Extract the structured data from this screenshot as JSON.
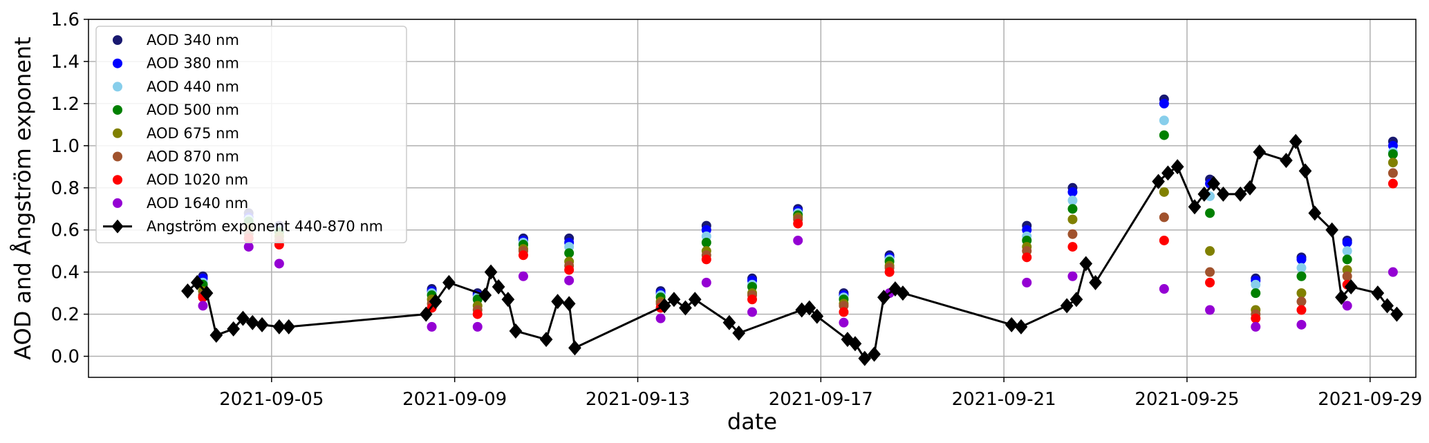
{
  "chart_data": {
    "type": "scatter",
    "title": "",
    "xlabel": "date",
    "ylabel": "AOD and Ångström exponent",
    "xlim": [
      "2021-09-01",
      "2021-09-30"
    ],
    "ylim": [
      -0.1,
      1.6
    ],
    "x_ticks": [
      "2021-09-05",
      "2021-09-09",
      "2021-09-13",
      "2021-09-17",
      "2021-09-21",
      "2021-09-25",
      "2021-09-29"
    ],
    "y_ticks": [
      "0.0",
      "0.2",
      "0.4",
      "0.6",
      "0.8",
      "1.0",
      "1.2",
      "1.4",
      "1.6"
    ],
    "grid": true,
    "legend_position": "top-left",
    "x": [
      "2021-09-03 12:00",
      "2021-09-04 12:00",
      "2021-09-05 04:00",
      "2021-09-08 12:00",
      "2021-09-09 12:00",
      "2021-09-10 12:00",
      "2021-09-11 12:00",
      "2021-09-13 12:00",
      "2021-09-14 12:00",
      "2021-09-15 12:00",
      "2021-09-16 12:00",
      "2021-09-17 12:00",
      "2021-09-18 12:00",
      "2021-09-21 12:00",
      "2021-09-22 12:00",
      "2021-09-24 12:00",
      "2021-09-25 12:00",
      "2021-09-26 12:00",
      "2021-09-27 12:00",
      "2021-09-28 12:00",
      "2021-09-29 12:00"
    ],
    "series": [
      {
        "name": "AOD 340 nm",
        "color": "#191970",
        "marker": "circle",
        "values": [
          0.38,
          0.68,
          0.62,
          0.32,
          0.3,
          0.56,
          0.56,
          0.31,
          0.62,
          0.37,
          0.7,
          0.3,
          0.48,
          0.62,
          0.8,
          1.22,
          0.84,
          0.37,
          0.47,
          0.55,
          1.02
        ]
      },
      {
        "name": "AOD 380 nm",
        "color": "#0000ff",
        "marker": "circle",
        "values": [
          0.37,
          0.66,
          0.61,
          0.31,
          0.29,
          0.55,
          0.54,
          0.3,
          0.6,
          0.36,
          0.69,
          0.29,
          0.47,
          0.6,
          0.78,
          1.2,
          0.82,
          0.36,
          0.46,
          0.54,
          1.0
        ]
      },
      {
        "name": "AOD 440 nm",
        "color": "#87ceeb",
        "marker": "circle",
        "values": [
          0.35,
          0.65,
          0.6,
          0.3,
          0.28,
          0.54,
          0.52,
          0.29,
          0.57,
          0.34,
          0.68,
          0.28,
          0.46,
          0.57,
          0.74,
          1.12,
          0.76,
          0.34,
          0.42,
          0.5,
          0.97
        ]
      },
      {
        "name": "AOD 500 nm",
        "color": "#008000",
        "marker": "circle",
        "values": [
          0.34,
          0.64,
          0.59,
          0.29,
          0.27,
          0.53,
          0.49,
          0.28,
          0.54,
          0.33,
          0.67,
          0.27,
          0.45,
          0.55,
          0.7,
          1.05,
          0.68,
          0.3,
          0.38,
          0.46,
          0.96
        ]
      },
      {
        "name": "AOD 675 nm",
        "color": "#808000",
        "marker": "circle",
        "values": [
          0.31,
          0.61,
          0.57,
          0.27,
          0.24,
          0.51,
          0.45,
          0.26,
          0.5,
          0.3,
          0.66,
          0.25,
          0.43,
          0.52,
          0.65,
          0.78,
          0.5,
          0.22,
          0.3,
          0.41,
          0.92
        ]
      },
      {
        "name": "AOD 870 nm",
        "color": "#a0522d",
        "marker": "circle",
        "values": [
          0.29,
          0.58,
          0.55,
          0.25,
          0.22,
          0.5,
          0.43,
          0.25,
          0.48,
          0.29,
          0.65,
          0.24,
          0.42,
          0.5,
          0.58,
          0.66,
          0.4,
          0.2,
          0.26,
          0.38,
          0.87
        ]
      },
      {
        "name": "AOD 1020 nm",
        "color": "#ff0000",
        "marker": "circle",
        "values": [
          0.28,
          0.56,
          0.53,
          0.23,
          0.2,
          0.48,
          0.41,
          0.23,
          0.46,
          0.27,
          0.63,
          0.21,
          0.4,
          0.47,
          0.52,
          0.55,
          0.35,
          0.18,
          0.22,
          0.34,
          0.82
        ]
      },
      {
        "name": "AOD 1640 nm",
        "color": "#9400d3",
        "marker": "circle",
        "values": [
          0.24,
          0.52,
          0.44,
          0.14,
          0.14,
          0.38,
          0.36,
          0.18,
          0.35,
          0.21,
          0.55,
          0.16,
          0.3,
          0.35,
          0.38,
          0.32,
          0.22,
          0.14,
          0.15,
          0.24,
          0.4
        ]
      }
    ],
    "line_series": {
      "name": "Angström exponent 440-870 nm",
      "color": "#000000",
      "marker": "diamond",
      "x": [
        "2021-09-03 04:00",
        "2021-09-03 09:00",
        "2021-09-03 14:00",
        "2021-09-03 19:00",
        "2021-09-04 04:00",
        "2021-09-04 09:00",
        "2021-09-04 14:00",
        "2021-09-04 19:00",
        "2021-09-05 04:00",
        "2021-09-05 09:00",
        "2021-09-08 09:00",
        "2021-09-08 14:00",
        "2021-09-08 21:00",
        "2021-09-09 16:00",
        "2021-09-09 19:00",
        "2021-09-09 23:00",
        "2021-09-10 04:00",
        "2021-09-10 08:00",
        "2021-09-11 00:00",
        "2021-09-11 06:00",
        "2021-09-11 12:00",
        "2021-09-11 15:00",
        "2021-09-13 14:00",
        "2021-09-13 19:00",
        "2021-09-14 01:00",
        "2021-09-14 06:00",
        "2021-09-15 00:00",
        "2021-09-15 05:00",
        "2021-09-16 14:00",
        "2021-09-16 18:00",
        "2021-09-16 22:00",
        "2021-09-17 14:00",
        "2021-09-17 18:00",
        "2021-09-17 23:00",
        "2021-09-18 04:00",
        "2021-09-18 09:00",
        "2021-09-18 15:00",
        "2021-09-18 19:00",
        "2021-09-21 04:00",
        "2021-09-21 09:00",
        "2021-09-22 09:00",
        "2021-09-22 14:00",
        "2021-09-22 19:00",
        "2021-09-23 00:00",
        "2021-09-24 09:00",
        "2021-09-24 14:00",
        "2021-09-24 19:00",
        "2021-09-25 04:00",
        "2021-09-25 09:00",
        "2021-09-25 14:00",
        "2021-09-25 19:00",
        "2021-09-26 04:00",
        "2021-09-26 09:00",
        "2021-09-26 14:00",
        "2021-09-27 04:00",
        "2021-09-27 09:00",
        "2021-09-27 14:00",
        "2021-09-27 19:00",
        "2021-09-28 04:00",
        "2021-09-28 09:00",
        "2021-09-28 14:00",
        "2021-09-29 04:00",
        "2021-09-29 09:00",
        "2021-09-29 14:00"
      ],
      "values": [
        0.31,
        0.35,
        0.3,
        0.1,
        0.13,
        0.18,
        0.16,
        0.15,
        0.14,
        0.14,
        0.2,
        0.26,
        0.35,
        0.29,
        0.4,
        0.33,
        0.27,
        0.12,
        0.08,
        0.26,
        0.25,
        0.04,
        0.24,
        0.27,
        0.23,
        0.27,
        0.16,
        0.11,
        0.22,
        0.23,
        0.19,
        0.08,
        0.06,
        -0.01,
        0.01,
        0.28,
        0.32,
        0.3,
        0.15,
        0.14,
        0.24,
        0.27,
        0.44,
        0.35,
        0.83,
        0.87,
        0.9,
        0.71,
        0.77,
        0.82,
        0.77,
        0.77,
        0.8,
        0.97,
        0.93,
        1.02,
        0.88,
        0.68,
        0.6,
        0.28,
        0.33,
        0.3,
        0.24,
        0.2
      ]
    }
  }
}
